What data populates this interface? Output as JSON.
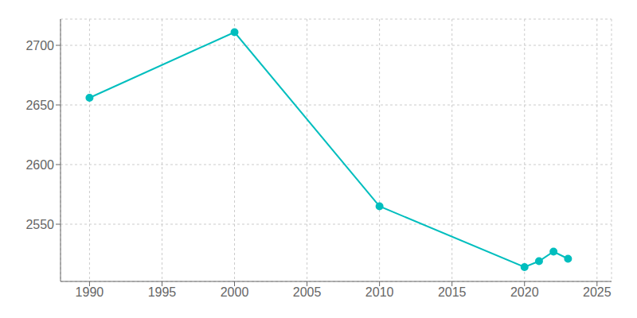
{
  "chart_data": {
    "type": "line",
    "x": [
      1990,
      2000,
      2010,
      2020,
      2021,
      2022,
      2023
    ],
    "values": [
      2656,
      2711,
      2565,
      2514,
      2519,
      2527,
      2521
    ],
    "color": "#00BEBE",
    "marker": "circle",
    "xlim": [
      1988,
      2026
    ],
    "ylim": [
      2502,
      2722
    ],
    "xticks": [
      1990,
      1995,
      2000,
      2005,
      2010,
      2015,
      2020,
      2025
    ],
    "yticks": [
      2550,
      2600,
      2650,
      2700
    ],
    "grid": true
  }
}
